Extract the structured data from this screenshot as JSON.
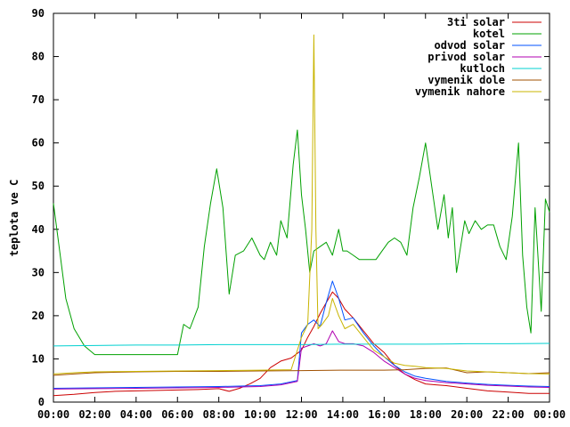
{
  "chart_data": {
    "type": "line",
    "title": "",
    "xlabel": "",
    "ylabel": "teplota ve C",
    "ylim": [
      0,
      90
    ],
    "xlim": [
      "00:00",
      "24:00"
    ],
    "grid": false,
    "legend_position": "top-right",
    "x_ticks": [
      "00:00",
      "02:00",
      "04:00",
      "06:00",
      "08:00",
      "10:00",
      "12:00",
      "14:00",
      "16:00",
      "18:00",
      "20:00",
      "22:00",
      "00:00"
    ],
    "y_ticks": [
      "0",
      "10",
      "20",
      "30",
      "40",
      "50",
      "60",
      "70",
      "80",
      "90"
    ],
    "x_unit": "hours",
    "series": [
      {
        "name": "3ti solar",
        "color": "#cc0000",
        "x": [
          0,
          1,
          2,
          3,
          4,
          5,
          6,
          7,
          7.5,
          8,
          8.5,
          9,
          9.5,
          10,
          10.5,
          11,
          11.5,
          12,
          12.3,
          12.6,
          12.9,
          13.2,
          13.5,
          13.8,
          14.1,
          14.5,
          15,
          15.5,
          16,
          16.5,
          17,
          17.5,
          18,
          18.5,
          19,
          20,
          21,
          22,
          23,
          24
        ],
        "y": [
          1.5,
          1.8,
          2.2,
          2.5,
          2.6,
          2.7,
          2.8,
          2.9,
          3.0,
          3.1,
          2.5,
          3.2,
          4.2,
          5.5,
          8,
          9.5,
          10.2,
          12,
          15,
          17.5,
          20.5,
          23,
          25.5,
          24,
          21.5,
          19.5,
          16.5,
          13.5,
          11.5,
          8.5,
          6.5,
          5.2,
          4.2,
          4.0,
          3.8,
          3.2,
          2.6,
          2.3,
          2.0,
          2.0
        ]
      },
      {
        "name": "kotel",
        "color": "#00a000",
        "x": [
          0,
          0.3,
          0.6,
          1.0,
          1.5,
          2.0,
          2.5,
          3.0,
          3.5,
          4.0,
          4.5,
          5.0,
          5.5,
          6.0,
          6.3,
          6.6,
          7.0,
          7.3,
          7.6,
          7.9,
          8.2,
          8.5,
          8.8,
          9.2,
          9.6,
          10.0,
          10.2,
          10.5,
          10.8,
          11.0,
          11.3,
          11.6,
          11.8,
          12.0,
          12.2,
          12.4,
          12.6,
          12.9,
          13.2,
          13.5,
          13.8,
          14.0,
          14.2,
          14.5,
          14.8,
          15.0,
          15.3,
          15.6,
          15.9,
          16.2,
          16.5,
          16.8,
          17.1,
          17.4,
          17.7,
          18.0,
          18.3,
          18.6,
          18.9,
          19.1,
          19.3,
          19.5,
          19.7,
          19.9,
          20.1,
          20.4,
          20.7,
          21.0,
          21.3,
          21.6,
          21.9,
          22.2,
          22.5,
          22.7,
          22.9,
          23.1,
          23.3,
          23.6,
          23.8,
          24.0
        ],
        "y": [
          46,
          35,
          24,
          17,
          13,
          11,
          11,
          11,
          11,
          11,
          11,
          11,
          11,
          11,
          18,
          17,
          22,
          36,
          46,
          54,
          45,
          25,
          34,
          35,
          38,
          34,
          33,
          37,
          34,
          42,
          38,
          55,
          63,
          48,
          40,
          30,
          35,
          36,
          37,
          34,
          40,
          35,
          35,
          34,
          33,
          33,
          33,
          33,
          35,
          37,
          38,
          37,
          34,
          45,
          52,
          60,
          50,
          40,
          48,
          38,
          45,
          30,
          36,
          42,
          39,
          42,
          40,
          41,
          41,
          36,
          33,
          43,
          60,
          34,
          22,
          16,
          45,
          21,
          47,
          44
        ]
      },
      {
        "name": "odvod solar",
        "color": "#0050ff",
        "x": [
          0,
          2,
          4,
          6,
          8,
          9,
          10,
          11,
          11.8,
          12.0,
          12.3,
          12.6,
          12.9,
          13.2,
          13.5,
          13.8,
          14.1,
          14.5,
          15,
          15.5,
          16,
          16.5,
          17,
          17.5,
          18,
          19,
          20,
          21,
          22,
          23,
          24
        ],
        "y": [
          3.2,
          3.3,
          3.4,
          3.5,
          3.6,
          3.7,
          3.8,
          4.2,
          5,
          16,
          18,
          19,
          17.5,
          23,
          28,
          24,
          19,
          19.5,
          16,
          13,
          10.5,
          8.5,
          7,
          6,
          5.5,
          4.8,
          4.4,
          4.1,
          3.9,
          3.7,
          3.6
        ]
      },
      {
        "name": "privod solar",
        "color": "#b000b0",
        "x": [
          0,
          2,
          4,
          6,
          8,
          9,
          10,
          11,
          11.8,
          12.0,
          12.3,
          12.6,
          12.9,
          13.2,
          13.5,
          13.8,
          14.1,
          14.5,
          15,
          15.5,
          16,
          16.5,
          17,
          17.5,
          18,
          19,
          20,
          21,
          22,
          23,
          24
        ],
        "y": [
          3.0,
          3.1,
          3.2,
          3.3,
          3.4,
          3.5,
          3.6,
          4.0,
          4.8,
          12.5,
          13,
          13.5,
          13,
          13.5,
          16.5,
          14,
          13.5,
          13.5,
          13,
          11.5,
          9.5,
          8,
          6.5,
          5.5,
          5.0,
          4.5,
          4.2,
          3.9,
          3.7,
          3.5,
          3.4
        ]
      },
      {
        "name": "kutloch",
        "color": "#00d0d0",
        "x": [
          0,
          2,
          4,
          6,
          8,
          10,
          12,
          14,
          16,
          18,
          20,
          22,
          24
        ],
        "y": [
          13,
          13.1,
          13.2,
          13.2,
          13.3,
          13.3,
          13.3,
          13.4,
          13.4,
          13.4,
          13.5,
          13.5,
          13.6
        ]
      },
      {
        "name": "vymenik dole",
        "color": "#a05000",
        "x": [
          0,
          1,
          2,
          4,
          6,
          8,
          10,
          12,
          14,
          16,
          17,
          18,
          19,
          20,
          21,
          22,
          23,
          24
        ],
        "y": [
          6.2,
          6.5,
          6.8,
          7.0,
          7.1,
          7.1,
          7.2,
          7.3,
          7.4,
          7.4,
          7.5,
          7.8,
          7.9,
          6.8,
          7.0,
          6.8,
          6.6,
          6.8
        ]
      },
      {
        "name": "vymenik nahore",
        "color": "#c8b400",
        "x": [
          0,
          1,
          2,
          4,
          6,
          8,
          10,
          11.5,
          12.0,
          12.3,
          12.5,
          12.6,
          12.7,
          12.8,
          13.0,
          13.3,
          13.5,
          13.8,
          14.1,
          14.5,
          15,
          15.5,
          16,
          16.5,
          17,
          17.5,
          18,
          19,
          20,
          21,
          22,
          23,
          24
        ],
        "y": [
          6.5,
          6.8,
          7.0,
          7.1,
          7.2,
          7.3,
          7.4,
          7.5,
          15,
          18,
          40,
          85,
          40,
          17,
          18,
          20,
          24,
          20,
          17,
          18,
          15,
          12,
          10.5,
          9,
          8.5,
          8.3,
          8.0,
          7.8,
          7.2,
          7.0,
          6.8,
          6.6,
          6.5
        ]
      }
    ]
  }
}
